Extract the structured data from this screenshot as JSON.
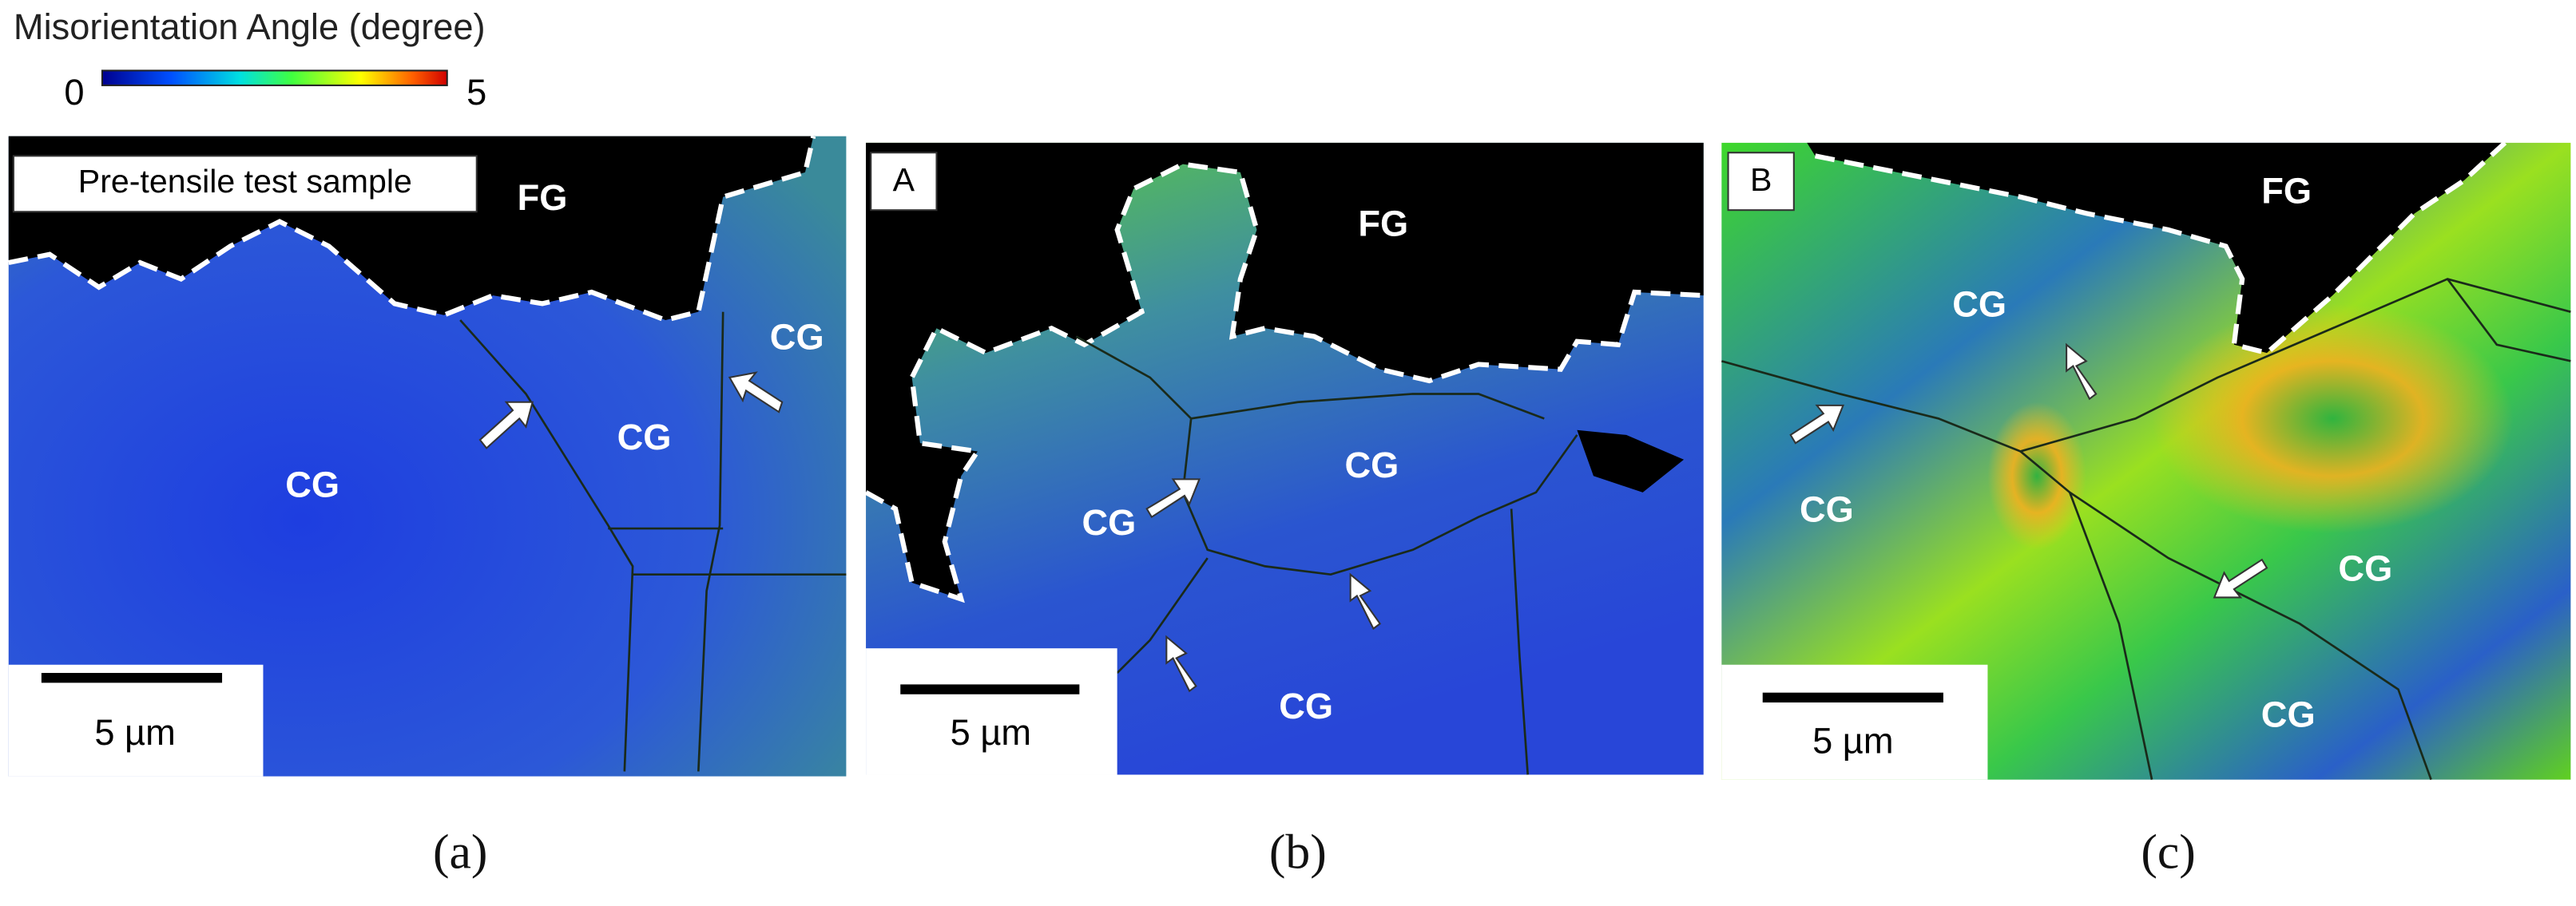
{
  "header": {
    "title": "Misorientation Angle (degree)"
  },
  "colorbar": {
    "min": 0,
    "max": 5
  },
  "panels": [
    {
      "caption": "(a)",
      "tag": "Pre-tensile test sample",
      "region_labels": [
        "FG",
        "CG",
        "CG",
        "CG"
      ],
      "scale": "5 µm"
    },
    {
      "caption": "(b)",
      "tag": "A",
      "region_labels": [
        "FG",
        "CG",
        "CG",
        "CG"
      ],
      "scale": "5 µm"
    },
    {
      "caption": "(c)",
      "tag": "B",
      "region_labels": [
        "FG",
        "CG",
        "CG",
        "CG",
        "CG"
      ],
      "scale": "5 µm"
    }
  ]
}
